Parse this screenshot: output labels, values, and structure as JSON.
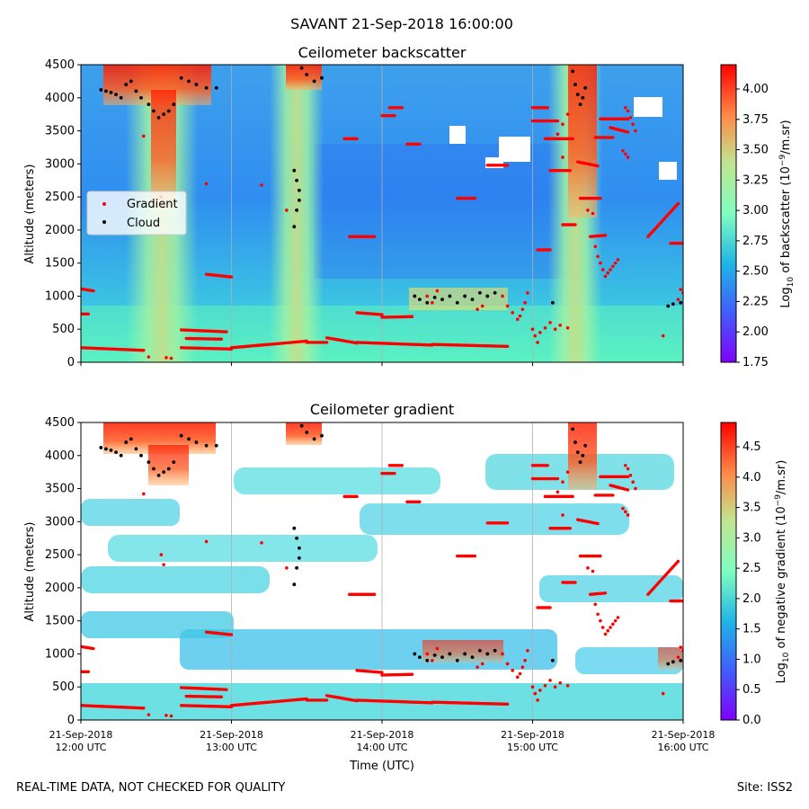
{
  "figure": {
    "title": "SAVANT 21-Sep-2018 16:00:00",
    "footer_left": "REAL-TIME DATA, NOT CHECKED FOR QUALITY",
    "footer_right": "Site: ISS2"
  },
  "chart_data": [
    {
      "type": "heatmap",
      "title": "Ceilometer backscatter",
      "xlabel": "",
      "ylabel": "Altitude (meters)",
      "xlim": [
        "2018-09-21 12:00",
        "2018-09-21 16:00"
      ],
      "ylim": [
        0,
        4500
      ],
      "yticks": [
        0,
        500,
        1000,
        1500,
        2000,
        2500,
        3000,
        3500,
        4000,
        4500
      ],
      "xticks": [
        "2018-09-21 12:00",
        "2018-09-21 13:00",
        "2018-09-21 14:00",
        "2018-09-21 15:00",
        "2018-09-21 16:00"
      ],
      "grid": "vertical",
      "colormap": "rainbow",
      "colorbar": {
        "label_parts": [
          "Log",
          "10",
          " of backscatter (10",
          "−9",
          "/m.sr)"
        ],
        "range": [
          1.75,
          4.2
        ],
        "ticks": [
          "1.75",
          "2.00",
          "2.25",
          "2.50",
          "2.75",
          "3.00",
          "3.25",
          "3.50",
          "3.75",
          "4.00"
        ]
      },
      "legend": {
        "placement": "center-left",
        "entries": [
          {
            "name": "Gradient",
            "color": "#ff0000"
          },
          {
            "name": "Cloud",
            "color": "#000000"
          }
        ]
      },
      "show_xticklabels": false
    },
    {
      "type": "heatmap",
      "title": "Ceilometer gradient",
      "xlabel": "Time (UTC)",
      "ylabel": "Altitude (meters)",
      "xlim": [
        "2018-09-21 12:00",
        "2018-09-21 16:00"
      ],
      "ylim": [
        0,
        4500
      ],
      "yticks": [
        0,
        500,
        1000,
        1500,
        2000,
        2500,
        3000,
        3500,
        4000,
        4500
      ],
      "xticks": [
        "2018-09-21 12:00",
        "2018-09-21 13:00",
        "2018-09-21 14:00",
        "2018-09-21 15:00",
        "2018-09-21 16:00"
      ],
      "xticklabels": [
        [
          "21-Sep-2018",
          "12:00 UTC"
        ],
        [
          "21-Sep-2018",
          "13:00 UTC"
        ],
        [
          "21-Sep-2018",
          "14:00 UTC"
        ],
        [
          "21-Sep-2018",
          "15:00 UTC"
        ],
        [
          "21-Sep-2018",
          "16:00 UTC"
        ]
      ],
      "grid": "vertical",
      "colormap": "rainbow",
      "colorbar": {
        "label_parts": [
          "Log",
          "10",
          " of negative gradient (10",
          "−9",
          "/m.sr)"
        ],
        "range": [
          0,
          4.9
        ],
        "ticks": [
          "0.0",
          "0.5",
          "1.0",
          "1.5",
          "2.0",
          "2.5",
          "3.0",
          "3.5",
          "4.0",
          "4.5"
        ]
      },
      "show_xticklabels": true
    }
  ],
  "series": {
    "gradient": {
      "name": "Gradient",
      "color": "#ff0000",
      "segments": [
        {
          "t": [
            "2018-09-21 12:00",
            "2018-09-21 12:25"
          ],
          "alt": [
            220,
            180
          ]
        },
        {
          "t": [
            "2018-09-21 12:40",
            "2018-09-21 13:00"
          ],
          "alt": [
            220,
            200
          ]
        },
        {
          "t": [
            "2018-09-21 13:00",
            "2018-09-21 13:30"
          ],
          "alt": [
            220,
            320
          ]
        },
        {
          "t": [
            "2018-09-21 13:30",
            "2018-09-21 13:38"
          ],
          "alt": [
            300,
            300
          ]
        },
        {
          "t": [
            "2018-09-21 13:38",
            "2018-09-21 13:50"
          ],
          "alt": [
            370,
            290
          ]
        },
        {
          "t": [
            "2018-09-21 13:50",
            "2018-09-21 14:20"
          ],
          "alt": [
            300,
            260
          ]
        },
        {
          "t": [
            "2018-09-21 14:20",
            "2018-09-21 14:50"
          ],
          "alt": [
            270,
            240
          ]
        },
        {
          "t": [
            "2018-09-21 12:40",
            "2018-09-21 12:58"
          ],
          "alt": [
            490,
            460
          ]
        },
        {
          "t": [
            "2018-09-21 12:42",
            "2018-09-21 12:56"
          ],
          "alt": [
            360,
            350
          ]
        },
        {
          "t": [
            "2018-09-21 12:50",
            "2018-09-21 13:00"
          ],
          "alt": [
            1330,
            1290
          ]
        },
        {
          "t": [
            "2018-09-21 13:47",
            "2018-09-21 13:57"
          ],
          "alt": [
            1900,
            1900
          ]
        },
        {
          "t": [
            "2018-09-21 13:45",
            "2018-09-21 13:50"
          ],
          "alt": [
            3380,
            3380
          ]
        },
        {
          "t": [
            "2018-09-21 13:50",
            "2018-09-21 14:00"
          ],
          "alt": [
            750,
            720
          ]
        },
        {
          "t": [
            "2018-09-21 14:00",
            "2018-09-21 14:12"
          ],
          "alt": [
            680,
            690
          ]
        },
        {
          "t": [
            "2018-09-21 14:00",
            "2018-09-21 14:05"
          ],
          "alt": [
            3730,
            3730
          ]
        },
        {
          "t": [
            "2018-09-21 14:03",
            "2018-09-21 14:08"
          ],
          "alt": [
            3850,
            3850
          ]
        },
        {
          "t": [
            "2018-09-21 14:10",
            "2018-09-21 14:15"
          ],
          "alt": [
            3300,
            3300
          ]
        },
        {
          "t": [
            "2018-09-21 14:30",
            "2018-09-21 14:37"
          ],
          "alt": [
            2480,
            2480
          ]
        },
        {
          "t": [
            "2018-09-21 14:42",
            "2018-09-21 14:50"
          ],
          "alt": [
            2980,
            2980
          ]
        },
        {
          "t": [
            "2018-09-21 15:00",
            "2018-09-21 15:06"
          ],
          "alt": [
            3850,
            3850
          ]
        },
        {
          "t": [
            "2018-09-21 15:00",
            "2018-09-21 15:10"
          ],
          "alt": [
            3650,
            3650
          ]
        },
        {
          "t": [
            "2018-09-21 15:05",
            "2018-09-21 15:16"
          ],
          "alt": [
            3380,
            3380
          ]
        },
        {
          "t": [
            "2018-09-21 15:07",
            "2018-09-21 15:15"
          ],
          "alt": [
            2900,
            2900
          ]
        },
        {
          "t": [
            "2018-09-21 15:12",
            "2018-09-21 15:17"
          ],
          "alt": [
            2080,
            2080
          ]
        },
        {
          "t": [
            "2018-09-21 15:18",
            "2018-09-21 15:26"
          ],
          "alt": [
            3030,
            2970
          ]
        },
        {
          "t": [
            "2018-09-21 15:19",
            "2018-09-21 15:27"
          ],
          "alt": [
            2480,
            2480
          ]
        },
        {
          "t": [
            "2018-09-21 15:23",
            "2018-09-21 15:29"
          ],
          "alt": [
            1900,
            1920
          ]
        },
        {
          "t": [
            "2018-09-21 15:02",
            "2018-09-21 15:07"
          ],
          "alt": [
            1700,
            1700
          ]
        },
        {
          "t": [
            "2018-09-21 15:27",
            "2018-09-21 15:38"
          ],
          "alt": [
            3680,
            3680
          ]
        },
        {
          "t": [
            "2018-09-21 15:25",
            "2018-09-21 15:32"
          ],
          "alt": [
            3400,
            3400
          ]
        },
        {
          "t": [
            "2018-09-21 15:31",
            "2018-09-21 15:38"
          ],
          "alt": [
            3550,
            3480
          ]
        },
        {
          "t": [
            "2018-09-21 15:46",
            "2018-09-21 15:58"
          ],
          "alt": [
            1900,
            2400
          ]
        },
        {
          "t": [
            "2018-09-21 15:55",
            "2018-09-21 16:00"
          ],
          "alt": [
            1800,
            1800
          ]
        },
        {
          "t": [
            "2018-09-21 12:00",
            "2018-09-21 12:05"
          ],
          "alt": [
            1110,
            1080
          ]
        },
        {
          "t": [
            "2018-09-21 12:00",
            "2018-09-21 12:03"
          ],
          "alt": [
            730,
            730
          ]
        }
      ],
      "scatter": [
        [
          "2018-09-21 14:48",
          1000
        ],
        [
          "2018-09-21 14:50",
          850
        ],
        [
          "2018-09-21 14:52",
          750
        ],
        [
          "2018-09-21 14:54",
          650
        ],
        [
          "2018-09-21 14:55",
          700
        ],
        [
          "2018-09-21 14:56",
          800
        ],
        [
          "2018-09-21 14:57",
          900
        ],
        [
          "2018-09-21 14:58",
          1050
        ],
        [
          "2018-09-21 15:00",
          500
        ],
        [
          "2018-09-21 15:01",
          400
        ],
        [
          "2018-09-21 15:02",
          300
        ],
        [
          "2018-09-21 15:03",
          450
        ],
        [
          "2018-09-21 15:05",
          520
        ],
        [
          "2018-09-21 15:07",
          600
        ],
        [
          "2018-09-21 15:09",
          500
        ],
        [
          "2018-09-21 15:11",
          560
        ],
        [
          "2018-09-21 15:14",
          520
        ],
        [
          "2018-09-21 15:10",
          3450
        ],
        [
          "2018-09-21 15:12",
          3600
        ],
        [
          "2018-09-21 15:14",
          3750
        ],
        [
          "2018-09-21 15:12",
          3100
        ],
        [
          "2018-09-21 15:22",
          2300
        ],
        [
          "2018-09-21 15:24",
          2250
        ],
        [
          "2018-09-21 15:25",
          1750
        ],
        [
          "2018-09-21 15:26",
          1600
        ],
        [
          "2018-09-21 15:27",
          1500
        ],
        [
          "2018-09-21 15:28",
          1400
        ],
        [
          "2018-09-21 15:29",
          1300
        ],
        [
          "2018-09-21 15:30",
          1350
        ],
        [
          "2018-09-21 15:31",
          1400
        ],
        [
          "2018-09-21 15:32",
          1450
        ],
        [
          "2018-09-21 15:33",
          1500
        ],
        [
          "2018-09-21 15:34",
          1550
        ],
        [
          "2018-09-21 15:36",
          3200
        ],
        [
          "2018-09-21 15:37",
          3150
        ],
        [
          "2018-09-21 15:38",
          3100
        ],
        [
          "2018-09-21 15:37",
          3850
        ],
        [
          "2018-09-21 15:38",
          3800
        ],
        [
          "2018-09-21 15:39",
          3700
        ],
        [
          "2018-09-21 15:40",
          3600
        ],
        [
          "2018-09-21 15:41",
          3500
        ],
        [
          "2018-09-21 15:52",
          400
        ],
        [
          "2018-09-21 15:58",
          950
        ],
        [
          "2018-09-21 15:59",
          1100
        ],
        [
          "2018-09-21 16:00",
          1050
        ],
        [
          "2018-09-21 14:18",
          1000
        ],
        [
          "2018-09-21 14:20",
          900
        ],
        [
          "2018-09-21 14:22",
          1080
        ],
        [
          "2018-09-21 14:38",
          800
        ],
        [
          "2018-09-21 14:40",
          850
        ],
        [
          "2018-09-21 12:25",
          3420
        ],
        [
          "2018-09-21 12:32",
          2500
        ],
        [
          "2018-09-21 12:33",
          2350
        ],
        [
          "2018-09-21 12:27",
          80
        ],
        [
          "2018-09-21 12:34",
          70
        ],
        [
          "2018-09-21 12:36",
          60
        ],
        [
          "2018-09-21 12:50",
          2700
        ],
        [
          "2018-09-21 13:12",
          2680
        ],
        [
          "2018-09-21 13:22",
          2300
        ]
      ]
    },
    "cloud": {
      "name": "Cloud",
      "color": "#000000",
      "scatter": [
        [
          "2018-09-21 12:08",
          4120
        ],
        [
          "2018-09-21 12:10",
          4100
        ],
        [
          "2018-09-21 12:12",
          4080
        ],
        [
          "2018-09-21 12:14",
          4050
        ],
        [
          "2018-09-21 12:16",
          4000
        ],
        [
          "2018-09-21 12:18",
          4200
        ],
        [
          "2018-09-21 12:20",
          4250
        ],
        [
          "2018-09-21 12:22",
          4100
        ],
        [
          "2018-09-21 12:24",
          4000
        ],
        [
          "2018-09-21 12:27",
          3900
        ],
        [
          "2018-09-21 12:29",
          3800
        ],
        [
          "2018-09-21 12:31",
          3700
        ],
        [
          "2018-09-21 12:33",
          3750
        ],
        [
          "2018-09-21 12:35",
          3800
        ],
        [
          "2018-09-21 12:37",
          3900
        ],
        [
          "2018-09-21 12:40",
          4300
        ],
        [
          "2018-09-21 12:43",
          4250
        ],
        [
          "2018-09-21 12:46",
          4200
        ],
        [
          "2018-09-21 12:50",
          4150
        ],
        [
          "2018-09-21 12:54",
          4150
        ],
        [
          "2018-09-21 13:25",
          2900
        ],
        [
          "2018-09-21 13:26",
          2750
        ],
        [
          "2018-09-21 13:27",
          2600
        ],
        [
          "2018-09-21 13:25",
          2050
        ],
        [
          "2018-09-21 13:26",
          2300
        ],
        [
          "2018-09-21 13:27",
          2450
        ],
        [
          "2018-09-21 13:28",
          4450
        ],
        [
          "2018-09-21 13:30",
          4350
        ],
        [
          "2018-09-21 13:33",
          4250
        ],
        [
          "2018-09-21 13:36",
          4300
        ],
        [
          "2018-09-21 14:13",
          1000
        ],
        [
          "2018-09-21 14:15",
          950
        ],
        [
          "2018-09-21 14:18",
          900
        ],
        [
          "2018-09-21 14:21",
          980
        ],
        [
          "2018-09-21 14:24",
          950
        ],
        [
          "2018-09-21 14:27",
          1000
        ],
        [
          "2018-09-21 14:30",
          900
        ],
        [
          "2018-09-21 14:33",
          1000
        ],
        [
          "2018-09-21 14:36",
          950
        ],
        [
          "2018-09-21 14:39",
          1050
        ],
        [
          "2018-09-21 14:42",
          1000
        ],
        [
          "2018-09-21 14:45",
          1050
        ],
        [
          "2018-09-21 15:16",
          4400
        ],
        [
          "2018-09-21 15:17",
          4200
        ],
        [
          "2018-09-21 15:18",
          4050
        ],
        [
          "2018-09-21 15:19",
          3900
        ],
        [
          "2018-09-21 15:20",
          4000
        ],
        [
          "2018-09-21 15:21",
          4150
        ],
        [
          "2018-09-21 15:08",
          900
        ],
        [
          "2018-09-21 15:54",
          850
        ],
        [
          "2018-09-21 15:56",
          880
        ],
        [
          "2018-09-21 15:59",
          900
        ]
      ]
    }
  }
}
